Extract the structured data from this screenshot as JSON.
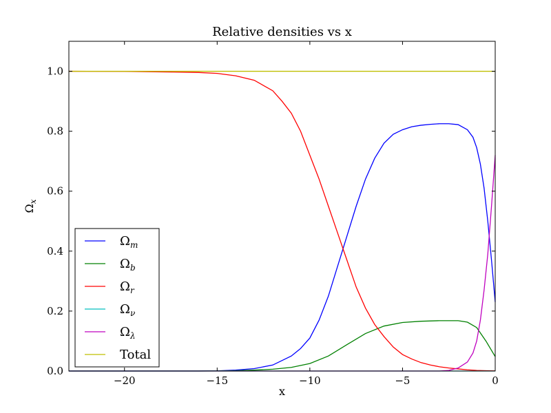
{
  "chart_data": {
    "type": "line",
    "title": "Relative densities vs x",
    "xlabel": "x",
    "ylabel": "Ω_x",
    "ylabel_main": "Ω",
    "ylabel_sub": "x",
    "xlim": [
      -23,
      0
    ],
    "ylim": [
      0.0,
      1.1
    ],
    "x_ticks": [
      -20,
      -15,
      -10,
      -5,
      0
    ],
    "x_tick_labels": [
      "−20",
      "−15",
      "−10",
      "−5",
      "0"
    ],
    "y_ticks": [
      0.0,
      0.2,
      0.4,
      0.6,
      0.8,
      1.0
    ],
    "y_tick_labels": [
      "0.0",
      "0.2",
      "0.4",
      "0.6",
      "0.8",
      "1.0"
    ],
    "grid": false,
    "legend_position": "bottom-left",
    "series": [
      {
        "name": "Ω_m",
        "label_main": "Ω",
        "label_sub": "m",
        "color": "#0000ff",
        "x": [
          -23,
          -20,
          -18,
          -16,
          -15,
          -14,
          -13,
          -12,
          -11,
          -10.5,
          -10,
          -9.5,
          -9,
          -8.5,
          -8,
          -7.5,
          -7,
          -6.5,
          -6,
          -5.5,
          -5,
          -4.5,
          -4,
          -3.5,
          -3,
          -2.5,
          -2,
          -1.5,
          -1.2,
          -1,
          -0.8,
          -0.6,
          -0.4,
          -0.2,
          0
        ],
        "y": [
          0,
          0,
          0,
          0,
          0.0005,
          0.003,
          0.008,
          0.02,
          0.05,
          0.075,
          0.11,
          0.17,
          0.25,
          0.35,
          0.45,
          0.55,
          0.64,
          0.71,
          0.76,
          0.79,
          0.805,
          0.815,
          0.82,
          0.823,
          0.825,
          0.825,
          0.822,
          0.805,
          0.78,
          0.745,
          0.69,
          0.61,
          0.5,
          0.37,
          0.23
        ]
      },
      {
        "name": "Ω_b",
        "label_main": "Ω",
        "label_sub": "b",
        "color": "#008000",
        "x": [
          -23,
          -20,
          -16,
          -15,
          -14,
          -13,
          -12,
          -11,
          -10,
          -9,
          -8,
          -7,
          -6,
          -5,
          -4,
          -3,
          -2,
          -1.5,
          -1,
          -0.5,
          0
        ],
        "y": [
          0,
          0,
          0,
          0.0002,
          0.001,
          0.003,
          0.006,
          0.012,
          0.025,
          0.05,
          0.088,
          0.125,
          0.15,
          0.162,
          0.166,
          0.168,
          0.168,
          0.163,
          0.145,
          0.1,
          0.048
        ]
      },
      {
        "name": "Ω_r",
        "label_main": "Ω",
        "label_sub": "r",
        "color": "#ff0000",
        "x": [
          -23,
          -20,
          -18,
          -16,
          -15,
          -14,
          -13,
          -12,
          -11.5,
          -11,
          -10.5,
          -10,
          -9.5,
          -9,
          -8.5,
          -8,
          -7.5,
          -7,
          -6.5,
          -6,
          -5.5,
          -5,
          -4.5,
          -4,
          -3.5,
          -3,
          -2.5,
          -2,
          -1.5,
          -1,
          -0.5,
          0
        ],
        "y": [
          1.0,
          0.9995,
          0.998,
          0.996,
          0.993,
          0.985,
          0.97,
          0.935,
          0.9,
          0.86,
          0.8,
          0.72,
          0.64,
          0.55,
          0.46,
          0.37,
          0.28,
          0.21,
          0.155,
          0.115,
          0.08,
          0.055,
          0.04,
          0.028,
          0.02,
          0.014,
          0.01,
          0.007,
          0.004,
          0.002,
          0.001,
          0.0005
        ]
      },
      {
        "name": "Ω_ν",
        "label_main": "Ω",
        "label_sub": "ν",
        "color": "#00bfbf",
        "x": [
          -23,
          0
        ],
        "y": [
          0,
          0
        ]
      },
      {
        "name": "Ω_λ",
        "label_main": "Ω",
        "label_sub": "λ",
        "color": "#bf00bf",
        "x": [
          -23,
          -5,
          -3,
          -2.5,
          -2,
          -1.5,
          -1.2,
          -1,
          -0.8,
          -0.6,
          -0.4,
          -0.2,
          0
        ],
        "y": [
          0,
          0,
          0,
          0.002,
          0.01,
          0.03,
          0.06,
          0.1,
          0.17,
          0.27,
          0.39,
          0.55,
          0.72
        ]
      },
      {
        "name": "Total",
        "label_main": "Total",
        "label_sub": "",
        "color": "#bfbf00",
        "x": [
          -23,
          0
        ],
        "y": [
          1.0,
          1.0
        ]
      }
    ]
  }
}
